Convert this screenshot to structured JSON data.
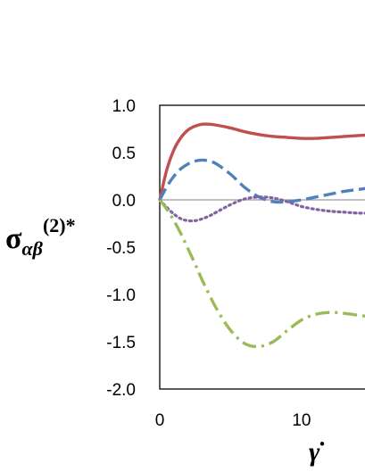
{
  "chart_data": {
    "type": "line",
    "xlabel": "γ̇",
    "ylabel": {
      "main": "σ",
      "sub": "αβ",
      "sup": "(2)*"
    },
    "xlim": [
      0,
      15.1
    ],
    "ylim": [
      -2.0,
      1.0
    ],
    "xticks": [
      0,
      10
    ],
    "xtick_labels": [
      "0",
      "10"
    ],
    "yticks": [
      1.0,
      0.5,
      0.0,
      -0.5,
      -1.0,
      -1.5,
      -2.0
    ],
    "ytick_labels": [
      "1.0",
      "0.5",
      "0.0",
      "-0.5",
      "-1.0",
      "-1.5",
      "-2.0"
    ],
    "grid": false,
    "zero_line": true,
    "legend": "none",
    "series": [
      {
        "color": "#c0504d",
        "style": "solid",
        "x": [
          0,
          0.5,
          1,
          1.5,
          2,
          2.5,
          3,
          3.5,
          4,
          5,
          6,
          7,
          8,
          9,
          10,
          11,
          12,
          13,
          14,
          15
        ],
        "y": [
          0,
          0.32,
          0.53,
          0.66,
          0.74,
          0.78,
          0.8,
          0.8,
          0.79,
          0.76,
          0.72,
          0.69,
          0.67,
          0.66,
          0.65,
          0.65,
          0.66,
          0.67,
          0.68,
          0.69
        ]
      },
      {
        "color": "#4f81bd",
        "style": "dashed",
        "x": [
          0,
          0.5,
          1,
          1.5,
          2,
          2.5,
          3,
          3.5,
          4,
          5,
          6,
          7,
          8,
          9,
          10,
          11,
          12,
          13,
          14,
          15
        ],
        "y": [
          0,
          0.14,
          0.25,
          0.33,
          0.38,
          0.41,
          0.42,
          0.41,
          0.38,
          0.27,
          0.13,
          0.03,
          -0.02,
          -0.02,
          0.0,
          0.03,
          0.06,
          0.09,
          0.11,
          0.13
        ]
      },
      {
        "color": "#8064a2",
        "style": "dotted",
        "x": [
          0,
          0.5,
          1,
          1.5,
          2,
          2.5,
          3,
          3.5,
          4,
          5,
          6,
          7,
          8,
          9,
          10,
          11,
          12,
          13,
          14,
          15
        ],
        "y": [
          0,
          -0.08,
          -0.15,
          -0.2,
          -0.22,
          -0.22,
          -0.2,
          -0.17,
          -0.13,
          -0.05,
          0.01,
          0.03,
          0.02,
          -0.02,
          -0.07,
          -0.1,
          -0.12,
          -0.13,
          -0.14,
          -0.14
        ]
      },
      {
        "color": "#9bbb59",
        "style": "dashdot",
        "x": [
          0,
          0.5,
          1,
          1.5,
          2,
          2.5,
          3,
          4,
          5,
          6,
          7,
          8,
          9,
          10,
          11,
          12,
          13,
          14,
          15
        ],
        "y": [
          0,
          -0.1,
          -0.22,
          -0.36,
          -0.52,
          -0.68,
          -0.85,
          -1.15,
          -1.38,
          -1.52,
          -1.55,
          -1.5,
          -1.38,
          -1.27,
          -1.21,
          -1.19,
          -1.2,
          -1.22,
          -1.24
        ]
      }
    ]
  }
}
